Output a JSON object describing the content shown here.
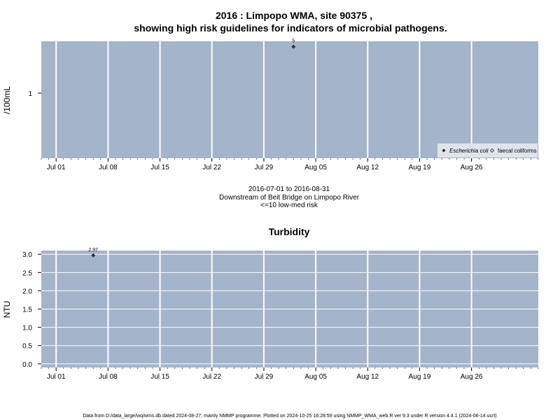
{
  "colors": {
    "panel": "#a3b4cb",
    "grid": "#ffffff",
    "point": "#333333"
  },
  "chart_data": [
    {
      "type": "scatter",
      "title_line1": "2016 : Limpopo WMA, site 90375 ,",
      "title_line2": "showing high risk guidelines for indicators of microbial pathogens.",
      "ylabel": "/100mL",
      "y_scale": "log",
      "yticks": [
        1
      ],
      "x_ticks": [
        "Jul 01",
        "Jul 08",
        "Jul 15",
        "Jul 22",
        "Jul 29",
        "Aug 05",
        "Aug 12",
        "Aug 19",
        "Aug 26"
      ],
      "xlim": [
        "2016-06-29",
        "2016-09-04"
      ],
      "grid": true,
      "legend_position": "bottom-right",
      "legend": [
        {
          "label": "Escherichia coli",
          "marker": "filled-diamond",
          "italic": true
        },
        {
          "label": "faecal coliforms",
          "marker": "open-diamond",
          "italic": false
        }
      ],
      "series": [
        {
          "name": "Escherichia coli",
          "points": [
            {
              "x": "2016-08-02",
              "y": 5,
              "label": "5"
            }
          ]
        }
      ],
      "caption": [
        "2016-07-01 to 2016-08-31",
        "Downstream of Beit Bridge on Limpopo River",
        "<=10 low-med risk"
      ]
    },
    {
      "type": "scatter",
      "title": "Turbidity",
      "ylabel": "NTU",
      "ylim": [
        -0.1,
        3.1
      ],
      "yticks": [
        "0.0",
        "0.5",
        "1.0",
        "1.5",
        "2.0",
        "2.5",
        "3.0"
      ],
      "x_ticks": [
        "Jul 01",
        "Jul 08",
        "Jul 15",
        "Jul 22",
        "Jul 29",
        "Aug 05",
        "Aug 12",
        "Aug 19",
        "Aug 26"
      ],
      "xlim": [
        "2016-06-29",
        "2016-09-04"
      ],
      "grid": true,
      "series": [
        {
          "points": [
            {
              "x": "2016-07-06",
              "y": 2.97,
              "label": "2.97"
            }
          ]
        }
      ]
    }
  ],
  "footer": "Data from D:/data_large/wq/wms.db dated 2024-08-27, mainly NMMP programme. Plotted on 2024-10-25 16:28:59 using NMMP_WMA_web.R ver 9.3 under R version 4.4.1 (2024-06-14 ucrt)"
}
